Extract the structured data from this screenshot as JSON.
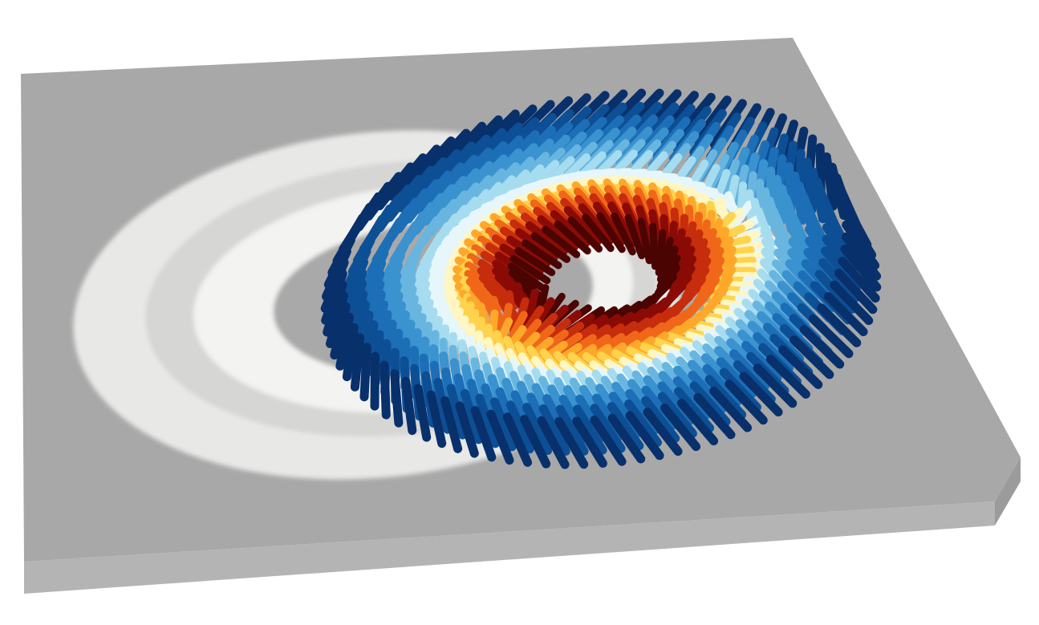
{
  "scene": {
    "kind": "3d-vector-field-render",
    "description_visible_text": "",
    "colors": {
      "background": "#ffffff",
      "slab_top": "#a9a9a9",
      "slab_front": "#b3b3b3",
      "slab_side": "#9c9c9c",
      "shadow_light": "#f1f1ef",
      "shadow_mid": "#d9d9d7",
      "palette": [
        "#08306b",
        "#0d4f95",
        "#1c6fb6",
        "#3a92cf",
        "#68b6e0",
        "#a6dcef",
        "#e6f6fa",
        "#fff6c2",
        "#ffd34d",
        "#fda82a",
        "#f0671a",
        "#c62d0d",
        "#8a0b05",
        "#4a0402"
      ]
    }
  }
}
